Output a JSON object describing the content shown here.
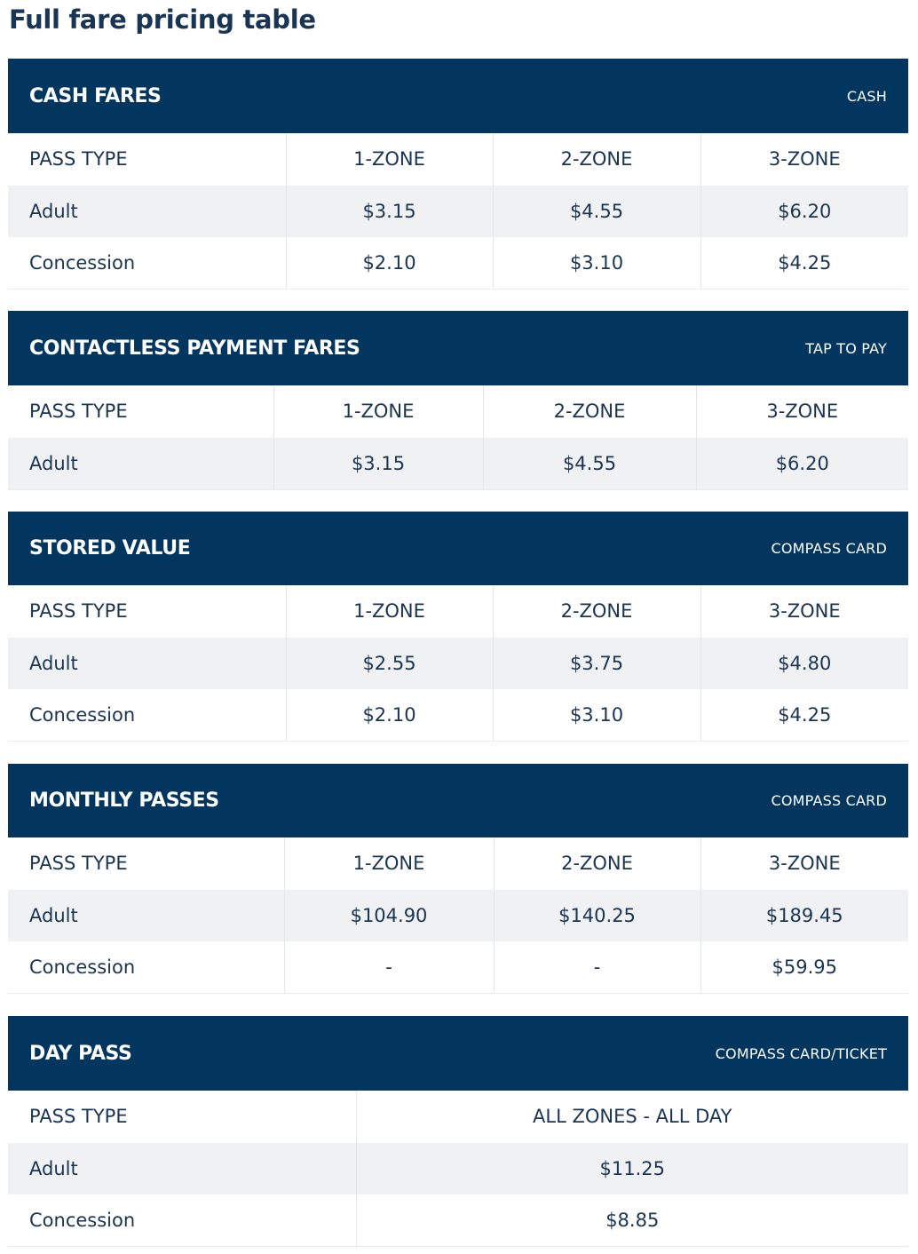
{
  "page_title": "Full fare pricing table",
  "sections": {
    "cash": {
      "title": "CASH FARES",
      "method": "CASH",
      "columns": [
        "PASS TYPE",
        "1-ZONE",
        "2-ZONE",
        "3-ZONE"
      ],
      "rows": [
        [
          "Adult",
          "$3.15",
          "$4.55",
          "$6.20"
        ],
        [
          "Concession",
          "$2.10",
          "$3.10",
          "$4.25"
        ]
      ]
    },
    "contactless": {
      "title": "CONTACTLESS PAYMENT FARES",
      "method": "TAP TO PAY",
      "columns": [
        "PASS TYPE",
        "1-ZONE",
        "2-ZONE",
        "3-ZONE"
      ],
      "rows": [
        [
          "Adult",
          "$3.15",
          "$4.55",
          "$6.20"
        ]
      ]
    },
    "stored": {
      "title": "STORED VALUE",
      "method": "COMPASS CARD",
      "columns": [
        "PASS TYPE",
        "1-ZONE",
        "2-ZONE",
        "3-ZONE"
      ],
      "rows": [
        [
          "Adult",
          "$2.55",
          "$3.75",
          "$4.80"
        ],
        [
          "Concession",
          "$2.10",
          "$3.10",
          "$4.25"
        ]
      ]
    },
    "monthly": {
      "title": "MONTHLY PASSES",
      "method": "COMPASS CARD",
      "columns": [
        "PASS TYPE",
        "1-ZONE",
        "2-ZONE",
        "3-ZONE"
      ],
      "rows": [
        [
          "Adult",
          "$104.90",
          "$140.25",
          "$189.45"
        ],
        [
          "Concession",
          "-",
          "-",
          "$59.95"
        ]
      ]
    },
    "daypass": {
      "title": "DAY PASS",
      "method": "COMPASS CARD/TICKET",
      "columns": [
        "PASS TYPE",
        "ALL ZONES - ALL DAY"
      ],
      "rows": [
        [
          "Adult",
          "$11.25"
        ],
        [
          "Concession",
          "$8.85"
        ]
      ]
    }
  },
  "colors": {
    "header_background": "#02365f",
    "header_text": "#ffffff",
    "body_text": "#1a3453",
    "shaded_row": "#f0f1f3"
  }
}
